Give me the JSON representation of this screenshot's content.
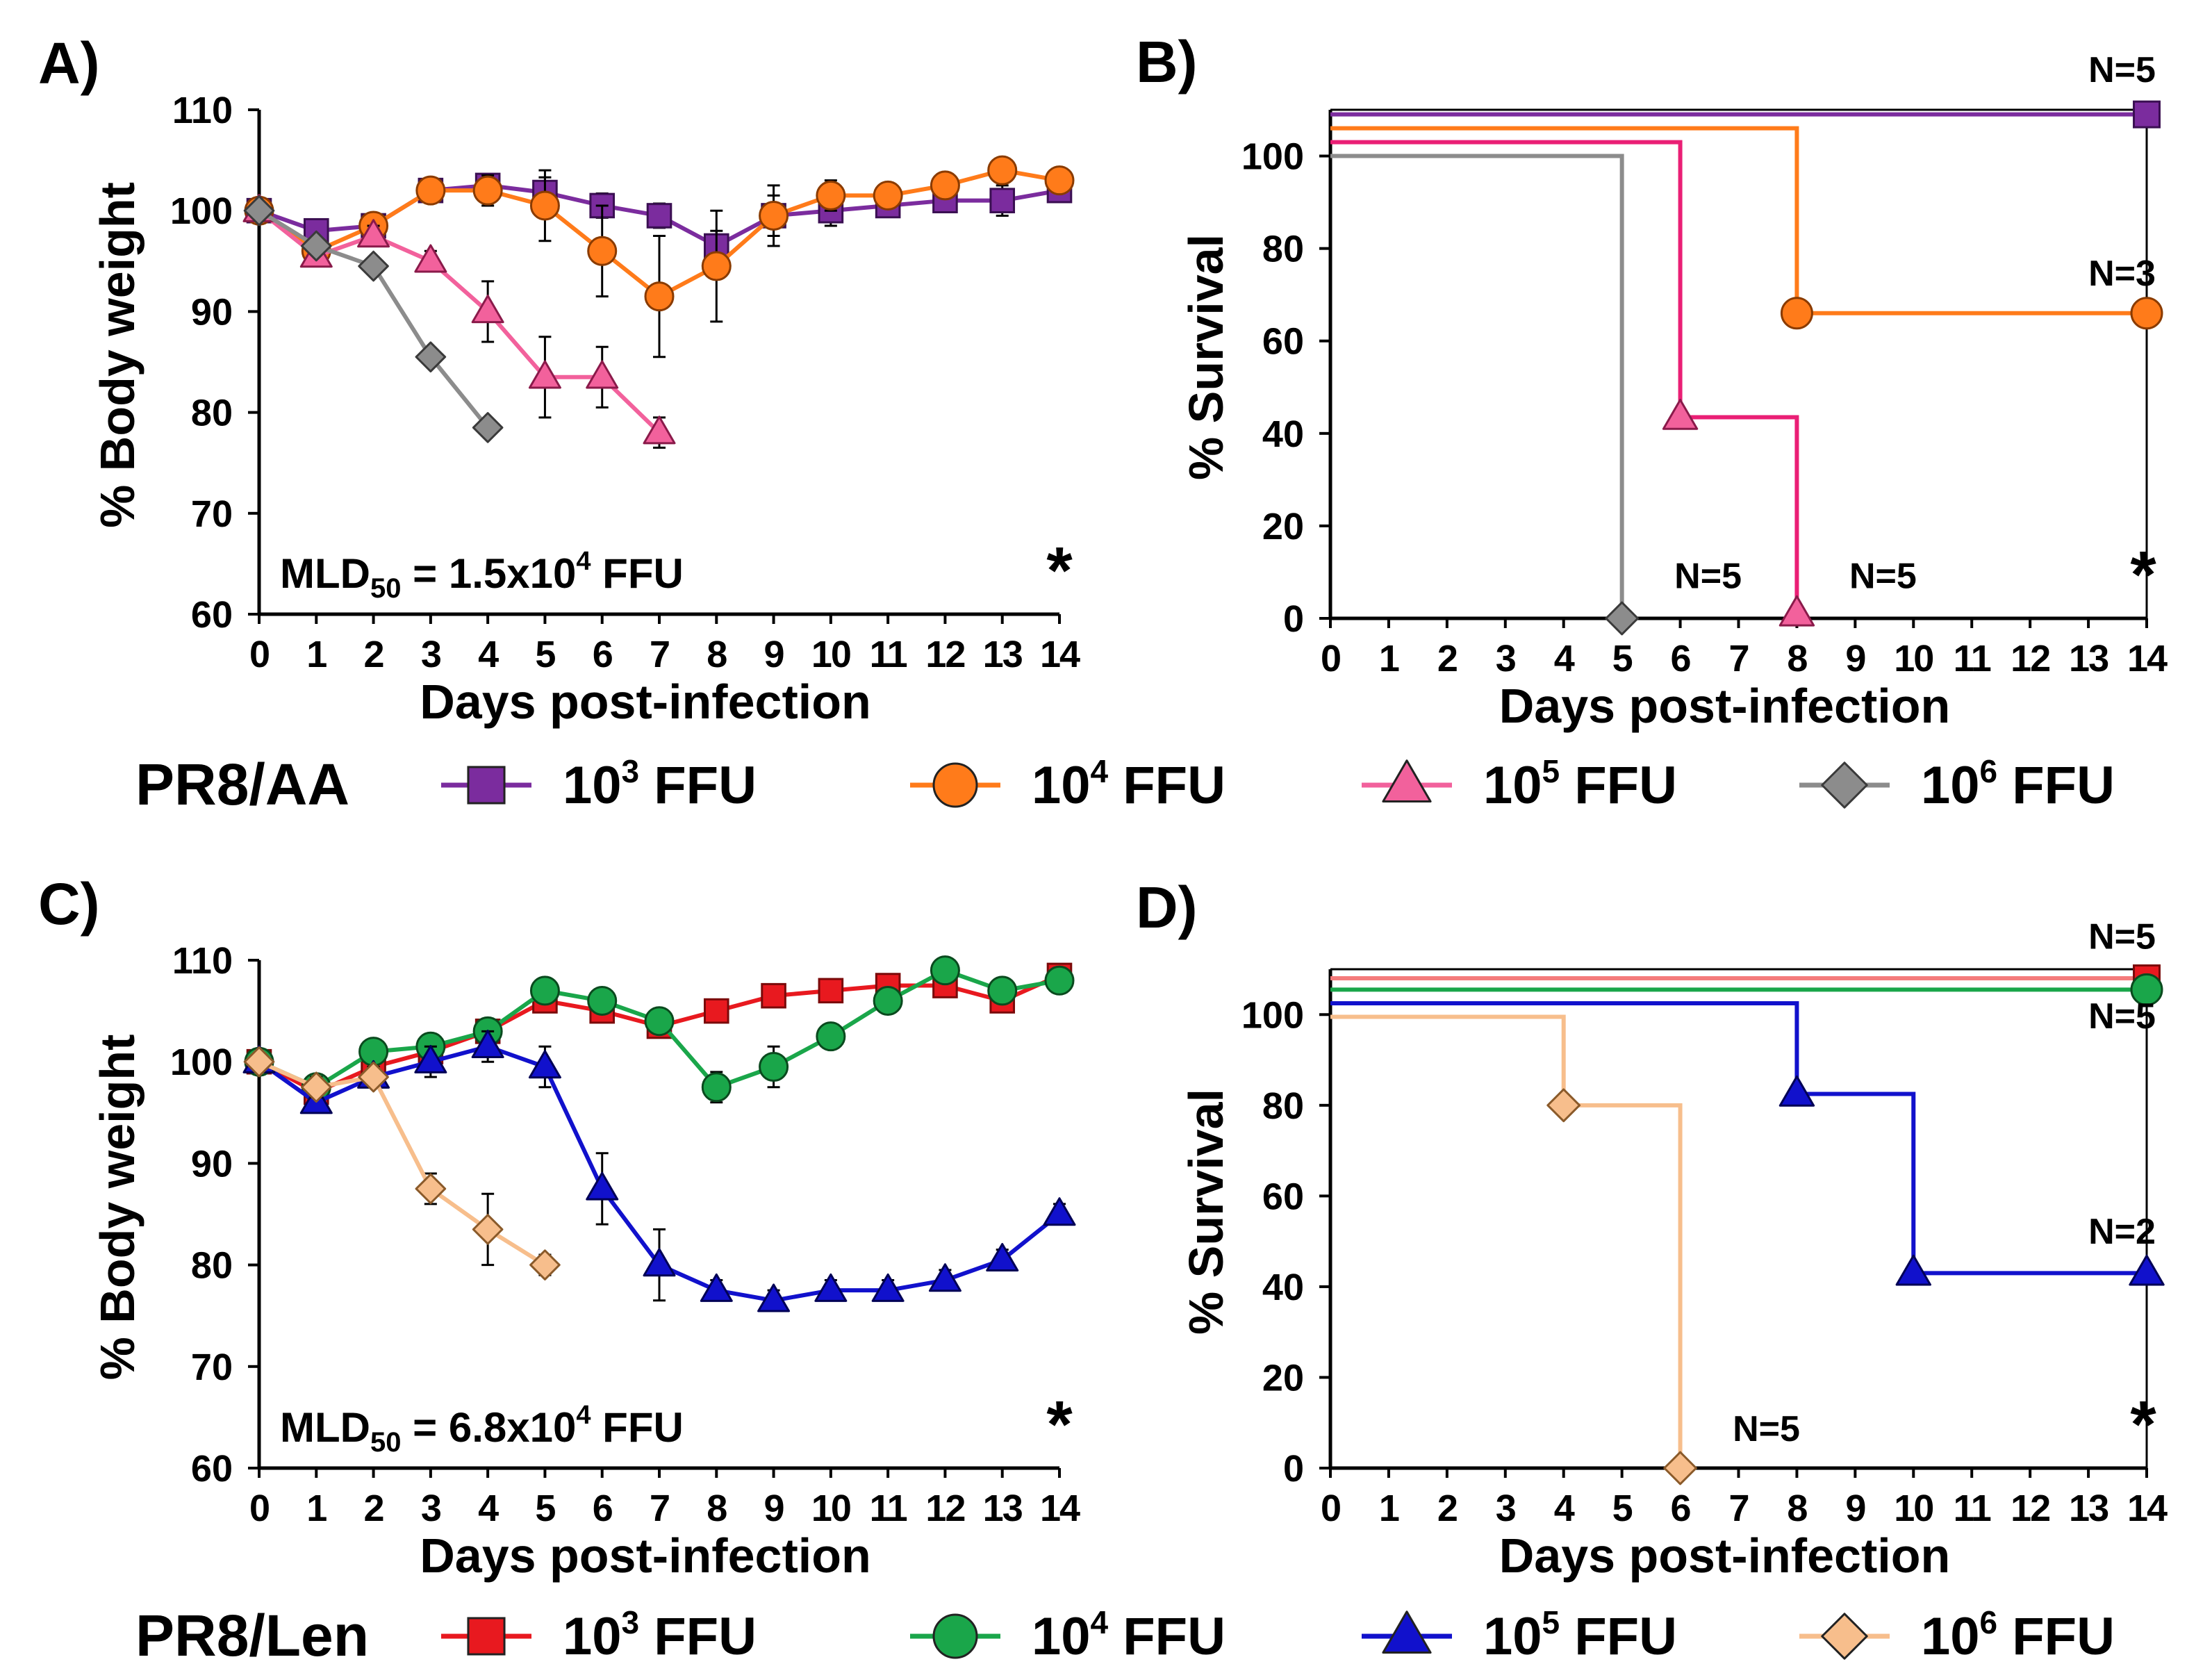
{
  "legends": {
    "AA": {
      "label": "PR8/AA",
      "entries": [
        {
          "base": "10",
          "exp": "3",
          "unit": " FFU",
          "color": "#7b2c9e",
          "marker": "square"
        },
        {
          "base": "10",
          "exp": "4",
          "unit": " FFU",
          "color": "#ff7b1a",
          "marker": "circle"
        },
        {
          "base": "10",
          "exp": "5",
          "unit": " FFU",
          "color": "#f2619c",
          "marker": "triangle"
        },
        {
          "base": "10",
          "exp": "6",
          "unit": " FFU",
          "color": "#8c8c8c",
          "marker": "diamond"
        }
      ]
    },
    "Len": {
      "label": "PR8/Len",
      "entries": [
        {
          "base": "10",
          "exp": "3",
          "unit": " FFU",
          "color": "#e8191f",
          "marker": "square"
        },
        {
          "base": "10",
          "exp": "4",
          "unit": " FFU",
          "color": "#1aa64a",
          "marker": "circle"
        },
        {
          "base": "10",
          "exp": "5",
          "unit": " FFU",
          "color": "#1111cc",
          "marker": "triangle"
        },
        {
          "base": "10",
          "exp": "6",
          "unit": " FFU",
          "color": "#f7be8c",
          "marker": "diamond"
        }
      ]
    }
  },
  "chart_data": [
    {
      "panel": "A)",
      "type": "line",
      "ylabel": "% Body weight",
      "xlabel": "Days post-infection",
      "xlim": [
        0,
        14
      ],
      "ylim": [
        60,
        110
      ],
      "yticks": [
        60,
        70,
        80,
        90,
        100,
        110
      ],
      "xticks": [
        0,
        1,
        2,
        3,
        4,
        5,
        6,
        7,
        8,
        9,
        10,
        11,
        12,
        13,
        14
      ],
      "annotation": {
        "prefix": "MLD",
        "sub": "50",
        "mid": " = 1.5x10",
        "sup": "4",
        "suffix": " FFU"
      },
      "star": "*",
      "series": [
        {
          "name": "PR8/AA 10^3 FFU",
          "color": "#7b2c9e",
          "stroke": "#3a0f52",
          "marker": "square",
          "x": [
            0,
            1,
            2,
            3,
            4,
            5,
            6,
            7,
            8,
            9,
            10,
            11,
            12,
            13,
            14
          ],
          "y": [
            100,
            98,
            98.5,
            102,
            102.5,
            101.8,
            100.5,
            99.5,
            96.5,
            99.5,
            100,
            100.5,
            101,
            101,
            102
          ],
          "err": [
            0,
            0.8,
            0.8,
            0.8,
            1,
            1.5,
            1.2,
            1.2,
            1.5,
            2,
            1.5,
            1,
            1,
            1.5,
            1
          ]
        },
        {
          "name": "PR8/AA 10^4 FFU",
          "color": "#ff7b1a",
          "stroke": "#8a3b00",
          "marker": "circle",
          "x": [
            0,
            1,
            2,
            3,
            4,
            5,
            6,
            7,
            8,
            9,
            10,
            11,
            12,
            13,
            14
          ],
          "y": [
            100,
            96,
            98.5,
            102,
            102,
            100.5,
            96,
            91.5,
            94.5,
            99.5,
            101.5,
            101.5,
            102.5,
            104,
            103
          ],
          "err": [
            0,
            1,
            1,
            1.2,
            1.5,
            3.5,
            4.5,
            6,
            5.5,
            3,
            1.5,
            1,
            1,
            1,
            1
          ]
        },
        {
          "name": "PR8/AA 10^5 FFU",
          "color": "#f2619c",
          "stroke": "#8a1a4a",
          "marker": "triangle",
          "x": [
            0,
            1,
            2,
            3,
            4,
            5,
            6,
            7
          ],
          "y": [
            100,
            95.5,
            97.5,
            95,
            90,
            83.5,
            83.5,
            78
          ],
          "err": [
            0,
            0.8,
            1,
            1,
            3,
            4,
            3,
            1.5
          ]
        },
        {
          "name": "PR8/AA 10^6 FFU",
          "color": "#8c8c8c",
          "stroke": "#3a3a3a",
          "marker": "diamond",
          "x": [
            0,
            1,
            2,
            3,
            4
          ],
          "y": [
            100,
            96.5,
            94.5,
            85.5,
            78.5
          ],
          "err": [
            0,
            0,
            0,
            0,
            0
          ]
        }
      ]
    },
    {
      "panel": "B)",
      "type": "line",
      "chart_kind": "survival-step",
      "ylabel": "% Survival",
      "xlabel": "Days post-infection",
      "xlim": [
        0,
        14
      ],
      "ylim": [
        0,
        110
      ],
      "yticks": [
        0,
        20,
        40,
        60,
        80,
        100
      ],
      "xticks": [
        0,
        1,
        2,
        3,
        4,
        5,
        6,
        7,
        8,
        9,
        10,
        11,
        12,
        13,
        14
      ],
      "star": "*",
      "series": [
        {
          "name": "PR8/AA 10^3 FFU",
          "color": "#7b2c9e",
          "stroke": "#3a0f52",
          "marker": "square",
          "steps": [
            [
              0,
              109
            ],
            [
              14,
              109
            ]
          ],
          "markers": [
            [
              14,
              109
            ]
          ]
        },
        {
          "name": "PR8/AA 10^4 FFU",
          "color": "#ff7b1a",
          "stroke": "#8a3b00",
          "marker": "circle",
          "steps": [
            [
              0,
              106
            ],
            [
              8,
              106
            ],
            [
              8,
              66
            ],
            [
              14,
              66
            ]
          ],
          "markers": [
            [
              8,
              66
            ],
            [
              14,
              66
            ]
          ]
        },
        {
          "name": "PR8/AA 10^5 FFU",
          "color": "#f2619c",
          "stroke": "#8a1a4a",
          "marker": "triangle",
          "line_color": "#ea1f75",
          "steps": [
            [
              0,
              103
            ],
            [
              6,
              103
            ],
            [
              6,
              43.5
            ],
            [
              8,
              43.5
            ],
            [
              8,
              1
            ]
          ],
          "markers": [
            [
              6,
              43.5
            ],
            [
              8,
              1
            ]
          ]
        },
        {
          "name": "PR8/AA 10^6 FFU",
          "color": "#8c8c8c",
          "stroke": "#3a3a3a",
          "marker": "diamond",
          "steps": [
            [
              0,
              100
            ],
            [
              5,
              100
            ],
            [
              5,
              0
            ]
          ],
          "markers": [
            [
              5,
              0
            ]
          ]
        }
      ],
      "labels": [
        {
          "text": "N=5",
          "x": 13,
          "y": 116
        },
        {
          "text": "N=3",
          "x": 13,
          "y": 72
        },
        {
          "text": "N=5",
          "x": 5.9,
          "y": 6.5
        },
        {
          "text": "N=5",
          "x": 8.9,
          "y": 6.5
        }
      ]
    },
    {
      "panel": "C)",
      "type": "line",
      "ylabel": "% Body weight",
      "xlabel": "Days post-infection",
      "xlim": [
        0,
        14
      ],
      "ylim": [
        60,
        110
      ],
      "yticks": [
        60,
        70,
        80,
        90,
        100,
        110
      ],
      "xticks": [
        0,
        1,
        2,
        3,
        4,
        5,
        6,
        7,
        8,
        9,
        10,
        11,
        12,
        13,
        14
      ],
      "annotation": {
        "prefix": "MLD",
        "sub": "50",
        "mid": " = 6.8x10",
        "sup": "4",
        "suffix": " FFU"
      },
      "star": "*",
      "series": [
        {
          "name": "PR8/Len 10^3 FFU",
          "color": "#e8191f",
          "stroke": "#7a0a0a",
          "marker": "square",
          "x": [
            0,
            1,
            2,
            3,
            4,
            5,
            6,
            7,
            8,
            9,
            10,
            11,
            12,
            13,
            14
          ],
          "y": [
            100,
            97,
            99.5,
            101,
            103,
            106,
            105,
            103.5,
            105,
            106.5,
            107,
            107.5,
            107.5,
            106,
            108.5
          ],
          "err": [
            0,
            0.8,
            0.8,
            0.8,
            1,
            1,
            1,
            1,
            1,
            1,
            1,
            1,
            1,
            1,
            1
          ]
        },
        {
          "name": "PR8/Len 10^4 FFU",
          "color": "#1aa64a",
          "stroke": "#0a4a1e",
          "marker": "circle",
          "x": [
            0,
            1,
            2,
            3,
            4,
            5,
            6,
            7,
            8,
            9,
            10,
            11,
            12,
            13,
            14
          ],
          "y": [
            100,
            97.5,
            101,
            101.5,
            103,
            107,
            106,
            104,
            97.5,
            99.5,
            102.5,
            106,
            109,
            107,
            108
          ],
          "err": [
            0,
            1,
            1,
            1,
            1,
            1,
            1,
            1,
            1.5,
            2,
            1,
            1,
            1,
            1,
            1
          ]
        },
        {
          "name": "PR8/Len 10^5 FFU",
          "color": "#1111cc",
          "stroke": "#000055",
          "marker": "triangle",
          "x": [
            0,
            1,
            2,
            3,
            4,
            5,
            6,
            7,
            8,
            9,
            10,
            11,
            12,
            13,
            14
          ],
          "y": [
            100,
            96,
            98.5,
            100,
            101.5,
            99.5,
            87.5,
            80,
            77.5,
            76.5,
            77.5,
            77.5,
            78.5,
            80.5,
            85
          ],
          "err": [
            0,
            1,
            1,
            1.5,
            1.5,
            2,
            3.5,
            3.5,
            1,
            1,
            1,
            1,
            1,
            1,
            1
          ]
        },
        {
          "name": "PR8/Len 10^6 FFU",
          "color": "#f7be8c",
          "stroke": "#8a5a2a",
          "marker": "diamond",
          "x": [
            0,
            1,
            2,
            3,
            4,
            5
          ],
          "y": [
            100,
            97.5,
            98.5,
            87.5,
            83.5,
            80
          ],
          "err": [
            0,
            1,
            1,
            1.5,
            3.5,
            1
          ]
        }
      ]
    },
    {
      "panel": "D)",
      "type": "line",
      "chart_kind": "survival-step",
      "ylabel": "% Survival",
      "xlabel": "Days post-infection",
      "xlim": [
        0,
        14
      ],
      "ylim": [
        0,
        110
      ],
      "yticks": [
        0,
        20,
        40,
        60,
        80,
        100
      ],
      "xticks": [
        0,
        1,
        2,
        3,
        4,
        5,
        6,
        7,
        8,
        9,
        10,
        11,
        12,
        13,
        14
      ],
      "star": "*",
      "series": [
        {
          "name": "PR8/Len 10^3 FFU",
          "color": "#e8191f",
          "stroke": "#7a0a0a",
          "marker": "square",
          "line_color": "#f47a7a",
          "steps": [
            [
              0,
              108
            ],
            [
              14,
              108
            ]
          ],
          "markers": [
            [
              14,
              108
            ]
          ]
        },
        {
          "name": "PR8/Len 10^4 FFU",
          "color": "#1aa64a",
          "stroke": "#0a4a1e",
          "marker": "circle",
          "steps": [
            [
              0,
              105.5
            ],
            [
              14,
              105.5
            ]
          ],
          "markers": [
            [
              14,
              105.5
            ]
          ]
        },
        {
          "name": "PR8/Len 10^5 FFU",
          "color": "#1111cc",
          "stroke": "#000055",
          "marker": "triangle",
          "steps": [
            [
              0,
              102.5
            ],
            [
              8,
              102.5
            ],
            [
              8,
              82.5
            ],
            [
              10,
              82.5
            ],
            [
              10,
              43
            ],
            [
              14,
              43
            ]
          ],
          "markers": [
            [
              8,
              82.5
            ],
            [
              10,
              43
            ],
            [
              14,
              43
            ]
          ]
        },
        {
          "name": "PR8/Len 10^6 FFU",
          "color": "#f7be8c",
          "stroke": "#8a5a2a",
          "marker": "diamond",
          "steps": [
            [
              0,
              99.5
            ],
            [
              4,
              99.5
            ],
            [
              4,
              80
            ],
            [
              6,
              80
            ],
            [
              6,
              0
            ]
          ],
          "markers": [
            [
              4,
              80
            ],
            [
              6,
              0
            ]
          ]
        }
      ],
      "labels": [
        {
          "text": "N=5",
          "x": 13,
          "y": 114.5
        },
        {
          "text": "N=5",
          "x": 13,
          "y": 97
        },
        {
          "text": "N=2",
          "x": 13,
          "y": 49.5
        },
        {
          "text": "N=5",
          "x": 6.9,
          "y": 6
        }
      ]
    }
  ]
}
